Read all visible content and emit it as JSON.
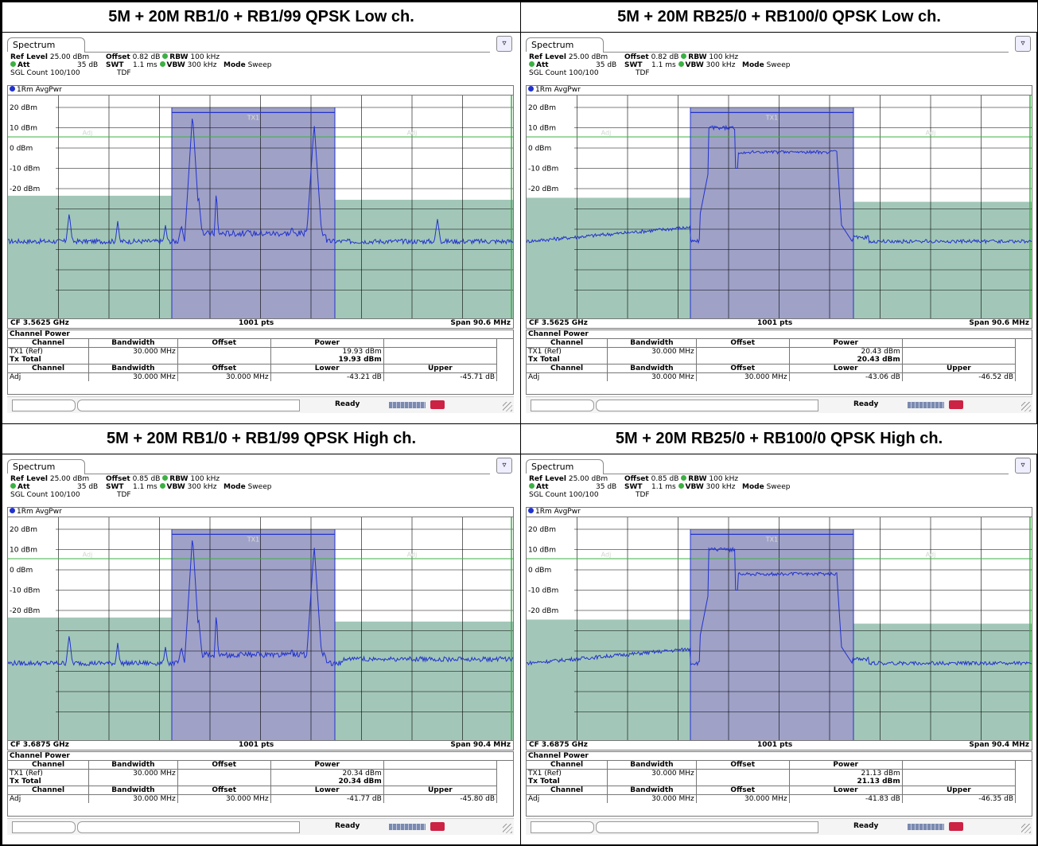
{
  "panels": [
    {
      "title": "5M + 20M RB1/0 + RB1/99 QPSK Low ch.",
      "tab": "Spectrum",
      "ref_level_label": "Ref Level",
      "ref_level": "25.00 dBm",
      "offset_label": "Offset",
      "offset": "0.82 dB",
      "rbw_label": "RBW",
      "rbw": "100 kHz",
      "att_label": "Att",
      "att": "35 dB",
      "swt_label": "SWT",
      "swt": "1.1 ms",
      "vbw_label": "VBW",
      "vbw": "300 kHz",
      "mode_label": "Mode",
      "mode": "Sweep",
      "sgl": "SGL Count 100/100",
      "tdf": "TDF",
      "trace": "1Rm AvgPwr",
      "cf": "CF 3.5625 GHz",
      "pts": "1001 pts",
      "span": "Span 90.6 MHz",
      "tx_label": "TX1",
      "adj_left": "Adj",
      "adj_right": "Adj",
      "ylabels": [
        "20 dBm",
        "10 dBm",
        "0 dBm",
        "-10 dBm",
        "-20 dBm"
      ],
      "cp_title": "Channel Power",
      "h_channel": "Channel",
      "h_bw": "Bandwidth",
      "h_offset": "Offset",
      "h_power": "Power",
      "tx1": "TX1 (Ref)",
      "tx1_bw": "30.000 MHz",
      "tx1_power": "19.93 dBm",
      "tx_total": "Tx Total",
      "tx_total_power": "19.93 dBm",
      "h_lower": "Lower",
      "h_upper": "Upper",
      "adj": "Adj",
      "adj_bw": "30.000 MHz",
      "adj_offset": "30.000 MHz",
      "adj_lower": "-43.21 dB",
      "adj_upper": "-45.71 dB",
      "status": "Ready",
      "spectrum_type": "spurs"
    },
    {
      "title": "5M + 20M RB25/0 + RB100/0 QPSK Low ch.",
      "tab": "Spectrum",
      "ref_level_label": "Ref Level",
      "ref_level": "25.00 dBm",
      "offset_label": "Offset",
      "offset": "0.82 dB",
      "rbw_label": "RBW",
      "rbw": "100 kHz",
      "att_label": "Att",
      "att": "35 dB",
      "swt_label": "SWT",
      "swt": "1.1 ms",
      "vbw_label": "VBW",
      "vbw": "300 kHz",
      "mode_label": "Mode",
      "mode": "Sweep",
      "sgl": "SGL Count 100/100",
      "tdf": "TDF",
      "trace": "1Rm AvgPwr",
      "cf": "CF 3.5625 GHz",
      "pts": "1001 pts",
      "span": "Span 90.6 MHz",
      "tx_label": "TX1",
      "adj_left": "Adj",
      "adj_right": "Adj",
      "ylabels": [
        "20 dBm",
        "10 dBm",
        "0 dBm",
        "-10 dBm",
        "-20 dBm"
      ],
      "cp_title": "Channel Power",
      "h_channel": "Channel",
      "h_bw": "Bandwidth",
      "h_offset": "Offset",
      "h_power": "Power",
      "tx1": "TX1 (Ref)",
      "tx1_bw": "30.000 MHz",
      "tx1_power": "20.43 dBm",
      "tx_total": "Tx Total",
      "tx_total_power": "20.43 dBm",
      "h_lower": "Lower",
      "h_upper": "Upper",
      "adj": "Adj",
      "adj_bw": "30.000 MHz",
      "adj_offset": "30.000 MHz",
      "adj_lower": "-43.06 dB",
      "adj_upper": "-46.52 dB",
      "status": "Ready",
      "spectrum_type": "block"
    },
    {
      "title": "5M + 20M RB1/0 + RB1/99 QPSK High ch.",
      "tab": "Spectrum",
      "ref_level_label": "Ref Level",
      "ref_level": "25.00 dBm",
      "offset_label": "Offset",
      "offset": "0.85 dB",
      "rbw_label": "RBW",
      "rbw": "100 kHz",
      "att_label": "Att",
      "att": "35 dB",
      "swt_label": "SWT",
      "swt": "1.1 ms",
      "vbw_label": "VBW",
      "vbw": "300 kHz",
      "mode_label": "Mode",
      "mode": "Sweep",
      "sgl": "SGL Count 100/100",
      "tdf": "TDF",
      "trace": "1Rm AvgPwr",
      "cf": "CF 3.6875 GHz",
      "pts": "1001 pts",
      "span": "Span 90.4 MHz",
      "tx_label": "TX1",
      "adj_left": "Adj",
      "adj_right": "Adj",
      "ylabels": [
        "20 dBm",
        "10 dBm",
        "0 dBm",
        "-10 dBm",
        "-20 dBm"
      ],
      "cp_title": "Channel Power",
      "h_channel": "Channel",
      "h_bw": "Bandwidth",
      "h_offset": "Offset",
      "h_power": "Power",
      "tx1": "TX1 (Ref)",
      "tx1_bw": "30.000 MHz",
      "tx1_power": "20.34 dBm",
      "tx_total": "Tx Total",
      "tx_total_power": "20.34 dBm",
      "h_lower": "Lower",
      "h_upper": "Upper",
      "adj": "Adj",
      "adj_bw": "30.000 MHz",
      "adj_offset": "30.000 MHz",
      "adj_lower": "-41.77 dB",
      "adj_upper": "-45.80 dB",
      "status": "Ready",
      "spectrum_type": "spurs"
    },
    {
      "title": "5M + 20M RB25/0 + RB100/0 QPSK High ch.",
      "tab": "Spectrum",
      "ref_level_label": "Ref Level",
      "ref_level": "25.00 dBm",
      "offset_label": "Offset",
      "offset": "0.85 dB",
      "rbw_label": "RBW",
      "rbw": "100 kHz",
      "att_label": "Att",
      "att": "35 dB",
      "swt_label": "SWT",
      "swt": "1.1 ms",
      "vbw_label": "VBW",
      "vbw": "300 kHz",
      "mode_label": "Mode",
      "mode": "Sweep",
      "sgl": "SGL Count 100/100",
      "tdf": "TDF",
      "trace": "1Rm AvgPwr",
      "cf": "CF 3.6875 GHz",
      "pts": "1001 pts",
      "span": "Span 90.4 MHz",
      "tx_label": "TX1",
      "adj_left": "Adj",
      "adj_right": "Adj",
      "ylabels": [
        "20 dBm",
        "10 dBm",
        "0 dBm",
        "-10 dBm",
        "-20 dBm"
      ],
      "cp_title": "Channel Power",
      "h_channel": "Channel",
      "h_bw": "Bandwidth",
      "h_offset": "Offset",
      "h_power": "Power",
      "tx1": "TX1 (Ref)",
      "tx1_bw": "30.000 MHz",
      "tx1_power": "21.13 dBm",
      "tx_total": "Tx Total",
      "tx_total_power": "21.13 dBm",
      "h_lower": "Lower",
      "h_upper": "Upper",
      "adj": "Adj",
      "adj_bw": "30.000 MHz",
      "adj_offset": "30.000 MHz",
      "adj_lower": "-41.83 dB",
      "adj_upper": "-46.35 dB",
      "status": "Ready",
      "spectrum_type": "block"
    }
  ],
  "colors": {
    "trace": "#2233cc",
    "tx_band": "#9a9cc4",
    "adj_band": "#9dc4b4",
    "limit_line": "#3cb043",
    "grid": "#000000"
  }
}
